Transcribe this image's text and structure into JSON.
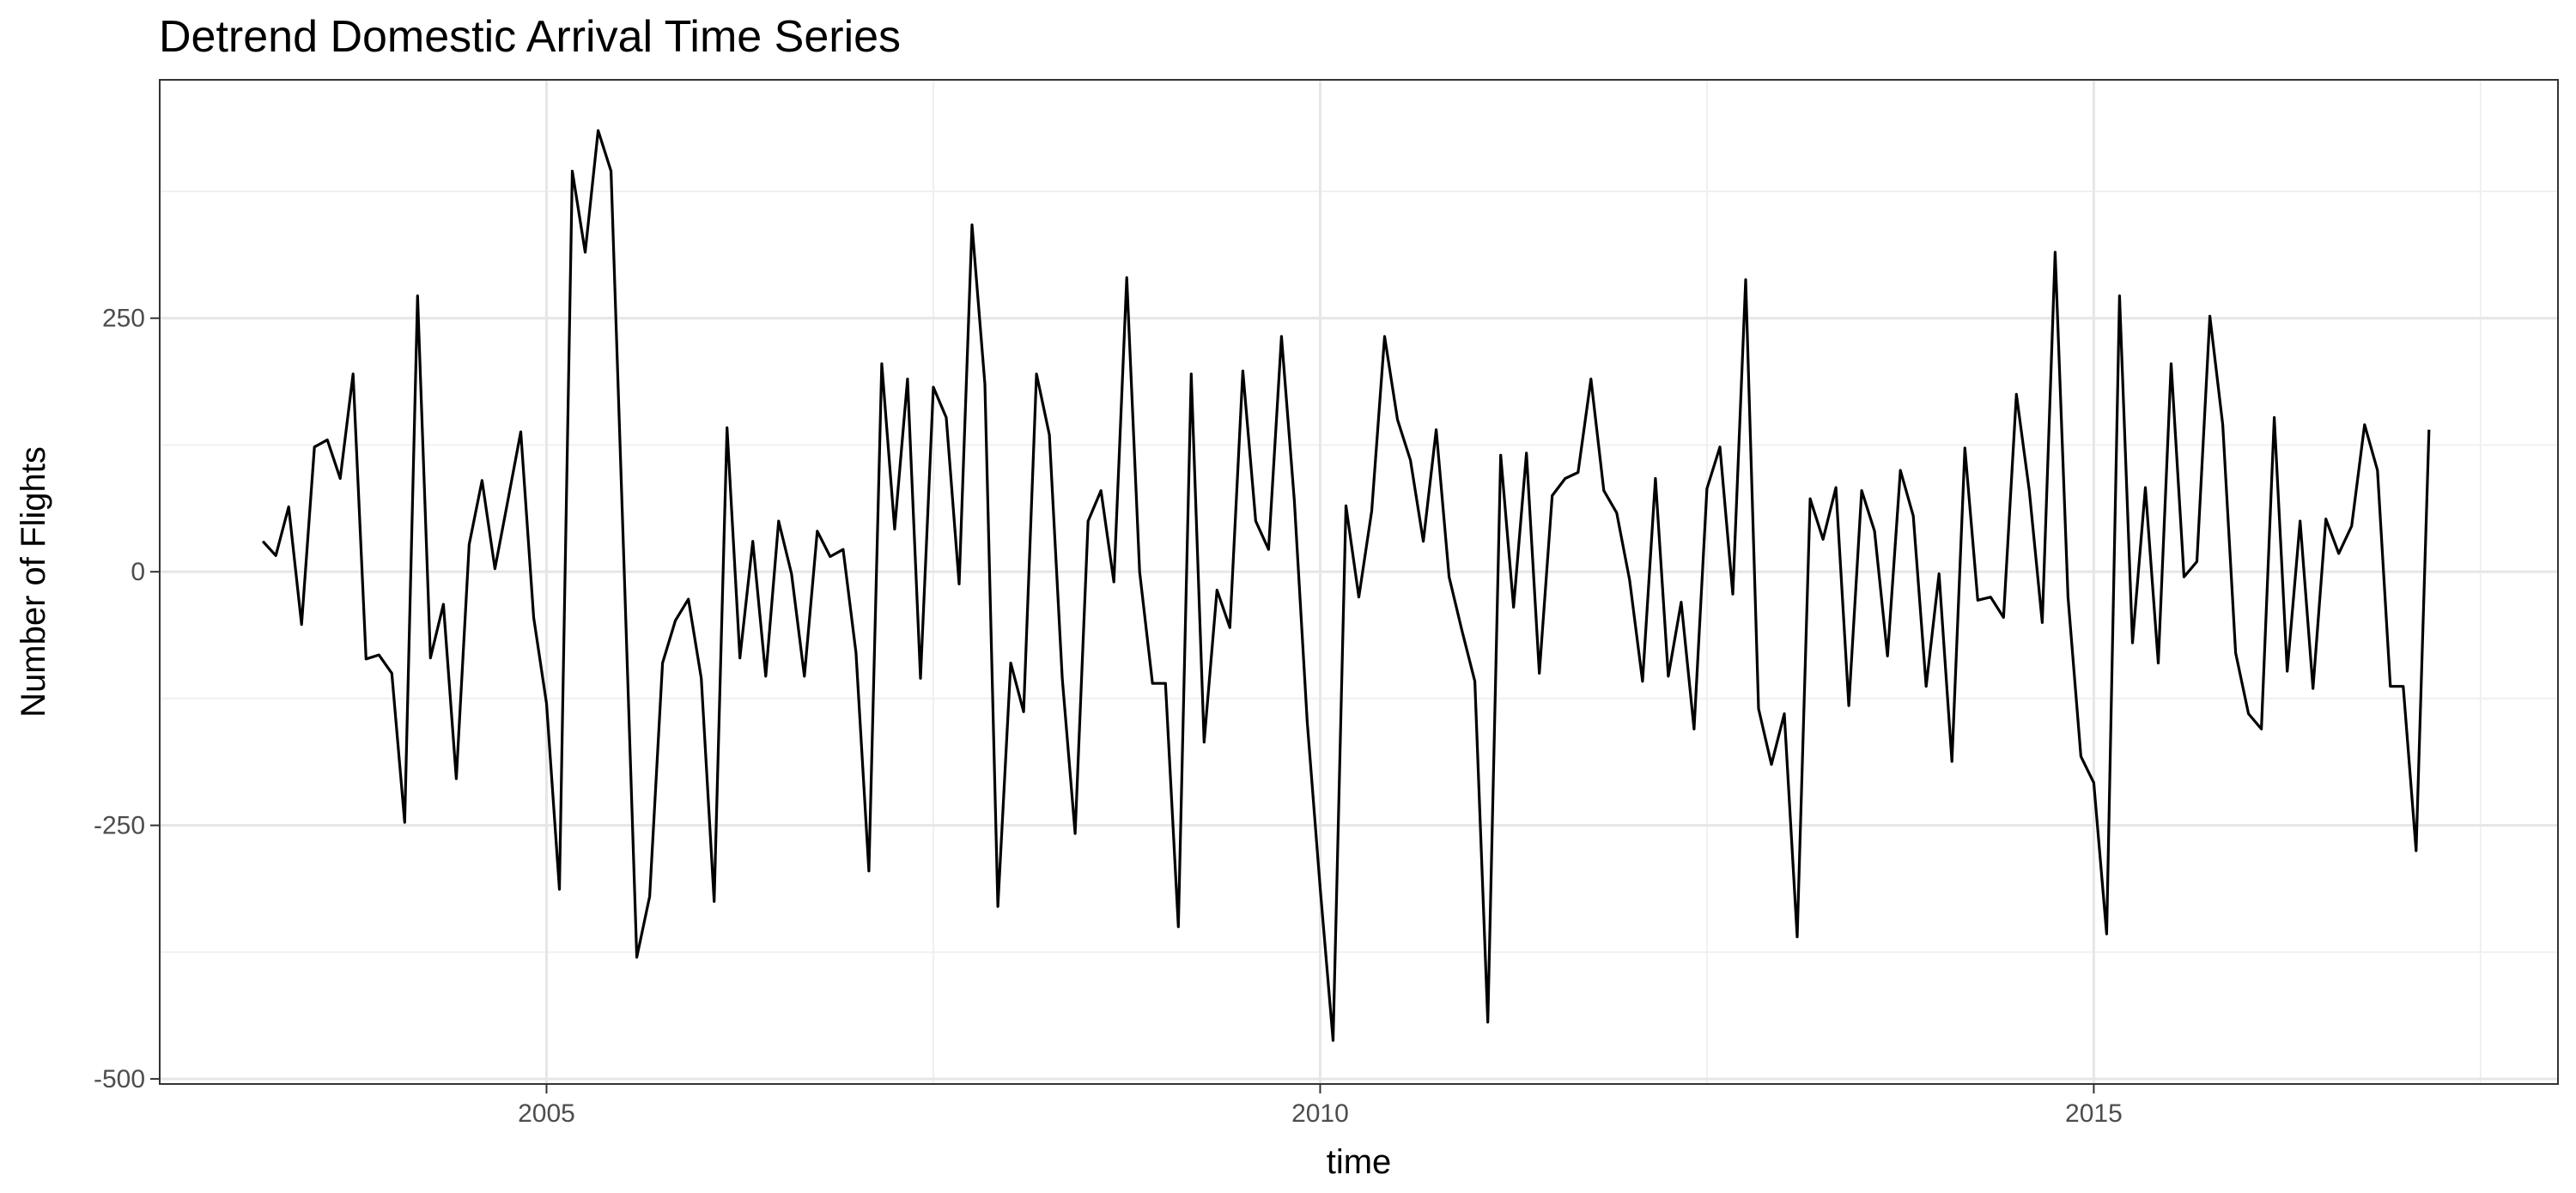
{
  "chart_data": {
    "type": "line",
    "title": "Detrend  Domestic Arrival Time Series",
    "xlabel": "time",
    "ylabel": "Number of Flights",
    "x_start": 2003.1667,
    "x_step": 0.083333,
    "xlim": [
      2002.5,
      2018.0
    ],
    "ylim": [
      -505,
      485
    ],
    "x_ticks": [
      2005,
      2010,
      2015
    ],
    "x_tick_labels": [
      "2005",
      "2010",
      "2015"
    ],
    "y_ticks": [
      -500,
      -250,
      0,
      250
    ],
    "y_tick_labels": [
      "-500",
      "-250",
      "0",
      "250"
    ],
    "grid": true,
    "line_color": "#000000",
    "series": [
      {
        "values": [
          30,
          16,
          64,
          -52,
          123,
          130,
          92,
          195,
          -86,
          -82,
          -100,
          -247,
          272,
          -85,
          -32,
          -204,
          27,
          90,
          3,
          70,
          138,
          -45,
          -130,
          -313,
          395,
          315,
          435,
          395,
          10,
          -380,
          -320,
          -90,
          -48,
          -27,
          -105,
          -325,
          142,
          -85,
          30,
          -103,
          50,
          -2,
          -103,
          40,
          15,
          22,
          -80,
          -295,
          205,
          42,
          190,
          -105,
          182,
          152,
          -12,
          342,
          185,
          -330,
          -90,
          -138,
          195,
          135,
          -105,
          -258,
          50,
          80,
          -10,
          290,
          0,
          -110,
          -110,
          -350,
          195,
          -168,
          -18,
          -55,
          198,
          50,
          22,
          232,
          70,
          -148,
          -312,
          -462,
          65,
          -25,
          60,
          232,
          150,
          110,
          30,
          140,
          -5,
          -58,
          -108,
          -444,
          115,
          -35,
          117,
          -100,
          75,
          92,
          98,
          190,
          80,
          58,
          -8,
          -108,
          92,
          -103,
          -30,
          -155,
          82,
          123,
          -22,
          288,
          -135,
          -190,
          -140,
          -360,
          72,
          32,
          83,
          -132,
          80,
          40,
          -83,
          100,
          55,
          -113,
          -2,
          -187,
          122,
          -28,
          -25,
          -45,
          175,
          80,
          -50,
          315,
          -25,
          -182,
          -208,
          -357,
          272,
          -70,
          83,
          -90,
          205,
          -5,
          10,
          252,
          145,
          -80,
          -140,
          -155,
          152,
          -98,
          50,
          -115,
          52,
          18,
          45,
          145,
          100,
          -113,
          -113,
          -275,
          140
        ]
      }
    ]
  }
}
